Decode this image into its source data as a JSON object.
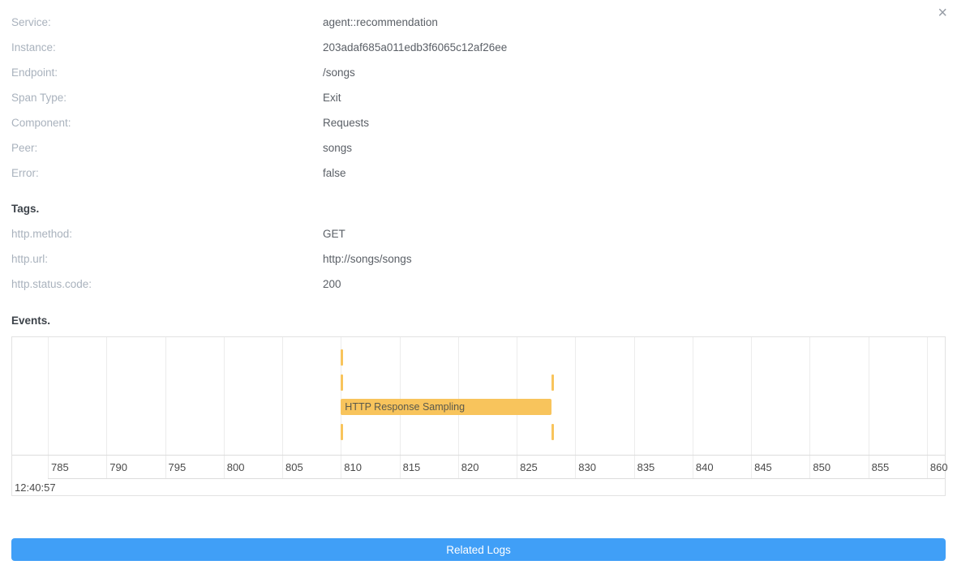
{
  "dialog": {
    "close_icon": "×",
    "fields": [
      {
        "label": "Service:",
        "value": "agent::recommendation"
      },
      {
        "label": "Instance:",
        "value": "203adaf685a011edb3f6065c12af26ee"
      },
      {
        "label": "Endpoint:",
        "value": "/songs"
      },
      {
        "label": "Span Type:",
        "value": "Exit"
      },
      {
        "label": "Component:",
        "value": "Requests"
      },
      {
        "label": "Peer:",
        "value": "songs"
      },
      {
        "label": "Error:",
        "value": "false"
      }
    ],
    "tags_heading": "Tags.",
    "tags": [
      {
        "label": "http.method:",
        "value": "GET"
      },
      {
        "label": "http.url:",
        "value": "http://songs/songs"
      },
      {
        "label": "http.status.code:",
        "value": "200"
      }
    ],
    "events_heading": "Events.",
    "related_logs_label": "Related Logs"
  },
  "chart_data": {
    "type": "timeline-events",
    "title": "Events.",
    "x_ticks": [
      785,
      790,
      795,
      800,
      805,
      810,
      815,
      820,
      825,
      830,
      835,
      840,
      845,
      850,
      855,
      860
    ],
    "x_range": [
      781.9,
      861.6
    ],
    "time_label": "12:40:57",
    "row_count": 4,
    "events": [
      {
        "row": 1,
        "start": 810,
        "end": 810,
        "label": ""
      },
      {
        "row": 2,
        "start": 810,
        "end": 810,
        "label": ""
      },
      {
        "row": 2,
        "start": 828,
        "end": 828,
        "label": ""
      },
      {
        "row": 3,
        "start": 810,
        "end": 828,
        "label": "HTTP Response Sampling"
      },
      {
        "row": 4,
        "start": 810,
        "end": 810,
        "label": ""
      },
      {
        "row": 4,
        "start": 828,
        "end": 828,
        "label": ""
      }
    ],
    "event_color": "#f8c45c",
    "event_label_color": "#5a594c",
    "grid": true,
    "legend": false
  },
  "colors": {
    "accent_blue": "#409ff7",
    "field_label_gray": "#a9b2bd",
    "field_value_gray": "#5a5f66",
    "heading_dark": "#3d434a"
  }
}
